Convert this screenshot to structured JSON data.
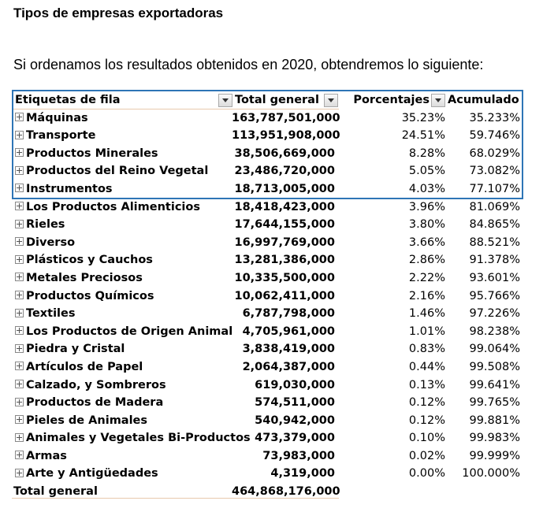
{
  "title": "Tipos de empresas exportadoras",
  "intro": "Si ordenamos los resultados obtenidos en 2020, obtendremos lo siguiente:",
  "colors": {
    "selection_border": "#2e75b6",
    "divider": "#e8c9ad"
  },
  "table": {
    "headers": {
      "label": "Etiquetas de fila",
      "total": "Total general",
      "pct": "Porcentajes",
      "acc": "Acumulado"
    },
    "rows": [
      {
        "label": "Máquinas",
        "total": "163,787,501,000",
        "pct": "35.23%",
        "acc": "35.233%"
      },
      {
        "label": "Transporte",
        "total": "113,951,908,000",
        "pct": "24.51%",
        "acc": "59.746%"
      },
      {
        "label": "Productos Minerales",
        "total": "38,506,669,000",
        "pct": "8.28%",
        "acc": "68.029%"
      },
      {
        "label": "Productos del Reino Vegetal",
        "total": "23,486,720,000",
        "pct": "5.05%",
        "acc": "73.082%"
      },
      {
        "label": "Instrumentos",
        "total": "18,713,005,000",
        "pct": "4.03%",
        "acc": "77.107%"
      },
      {
        "label": "Los Productos Alimenticios",
        "total": "18,418,423,000",
        "pct": "3.96%",
        "acc": "81.069%"
      },
      {
        "label": "Rieles",
        "total": "17,644,155,000",
        "pct": "3.80%",
        "acc": "84.865%"
      },
      {
        "label": "Diverso",
        "total": "16,997,769,000",
        "pct": "3.66%",
        "acc": "88.521%"
      },
      {
        "label": "Plásticos y Cauchos",
        "total": "13,281,386,000",
        "pct": "2.86%",
        "acc": "91.378%"
      },
      {
        "label": "Metales Preciosos",
        "total": "10,335,500,000",
        "pct": "2.22%",
        "acc": "93.601%"
      },
      {
        "label": "Productos Químicos",
        "total": "10,062,411,000",
        "pct": "2.16%",
        "acc": "95.766%"
      },
      {
        "label": "Textiles",
        "total": "6,787,798,000",
        "pct": "1.46%",
        "acc": "97.226%"
      },
      {
        "label": "Los Productos de Origen Animal",
        "total": "4,705,961,000",
        "pct": "1.01%",
        "acc": "98.238%"
      },
      {
        "label": "Piedra y Cristal",
        "total": "3,838,419,000",
        "pct": "0.83%",
        "acc": "99.064%"
      },
      {
        "label": "Artículos de Papel",
        "total": "2,064,387,000",
        "pct": "0.44%",
        "acc": "99.508%"
      },
      {
        "label": "Calzado, y Sombreros",
        "total": "619,030,000",
        "pct": "0.13%",
        "acc": "99.641%"
      },
      {
        "label": "Productos de Madera",
        "total": "574,511,000",
        "pct": "0.12%",
        "acc": "99.765%"
      },
      {
        "label": "Pieles de Animales",
        "total": "540,942,000",
        "pct": "0.12%",
        "acc": "99.881%"
      },
      {
        "label": "Animales y Vegetales Bi-Productos",
        "total": "473,379,000",
        "pct": "0.10%",
        "acc": "99.983%"
      },
      {
        "label": "Armas",
        "total": "73,983,000",
        "pct": "0.02%",
        "acc": "99.999%"
      },
      {
        "label": "Arte y Antigüedades",
        "total": "4,319,000",
        "pct": "0.00%",
        "acc": "100.000%"
      }
    ],
    "grand_total": {
      "label": "Total general",
      "total": "464,868,176,000"
    }
  }
}
